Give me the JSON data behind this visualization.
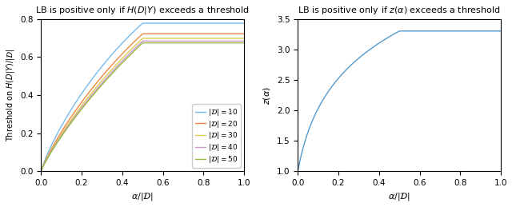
{
  "title_left": "LB is positive only if $H(D|Y)$ exceeds a threshold",
  "title_right": "LB is positive only if $z(\\alpha)$ exceeds a threshold",
  "xlabel_left": "$\\alpha/|\\mathcal{D}|$",
  "xlabel_right": "$\\alpha/|\\mathcal{D}|$",
  "ylabel_left": "Threshold on $H(D|Y)/|\\mathcal{D}|$",
  "ylabel_right": "$z(\\alpha)$",
  "D_values": [
    10,
    20,
    30,
    40,
    50
  ],
  "colors": [
    "#77BBEE",
    "#EE8844",
    "#DDCC55",
    "#CC99CC",
    "#99BB44"
  ],
  "ylim_left": [
    0,
    0.8
  ],
  "ylim_right": [
    1.0,
    3.5
  ],
  "yticks_left": [
    0,
    0.2,
    0.4,
    0.6,
    0.8
  ],
  "yticks_right": [
    1.0,
    1.5,
    2.0,
    2.5,
    3.0,
    3.5
  ],
  "xlim": [
    0,
    1
  ],
  "xticks": [
    0,
    0.2,
    0.4,
    0.6,
    0.8,
    1.0
  ]
}
